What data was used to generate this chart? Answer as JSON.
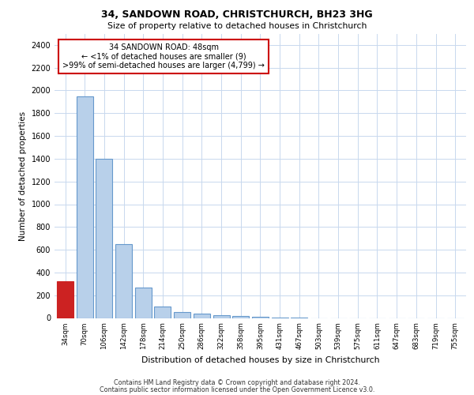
{
  "title1": "34, SANDOWN ROAD, CHRISTCHURCH, BH23 3HG",
  "title2": "Size of property relative to detached houses in Christchurch",
  "xlabel": "Distribution of detached houses by size in Christchurch",
  "ylabel": "Number of detached properties",
  "categories": [
    "34sqm",
    "70sqm",
    "106sqm",
    "142sqm",
    "178sqm",
    "214sqm",
    "250sqm",
    "286sqm",
    "322sqm",
    "358sqm",
    "395sqm",
    "431sqm",
    "467sqm",
    "503sqm",
    "539sqm",
    "575sqm",
    "611sqm",
    "647sqm",
    "683sqm",
    "719sqm",
    "755sqm"
  ],
  "values": [
    320,
    1950,
    1400,
    650,
    265,
    100,
    50,
    40,
    25,
    15,
    8,
    3,
    1,
    0,
    0,
    0,
    0,
    0,
    0,
    0,
    0
  ],
  "highlight_index": 0,
  "bar_color": "#b8d0ea",
  "bar_edge_color": "#6699cc",
  "highlight_bar_color": "#cc2222",
  "highlight_edge_color": "#cc2222",
  "annotation_box_color": "#ffffff",
  "annotation_box_edge": "#cc0000",
  "annotation_text": "34 SANDOWN ROAD: 48sqm\n← <1% of detached houses are smaller (9)\n>99% of semi-detached houses are larger (4,799) →",
  "ylim": [
    0,
    2500
  ],
  "yticks": [
    0,
    200,
    400,
    600,
    800,
    1000,
    1200,
    1400,
    1600,
    1800,
    2000,
    2200,
    2400
  ],
  "footer1": "Contains HM Land Registry data © Crown copyright and database right 2024.",
  "footer2": "Contains public sector information licensed under the Open Government Licence v3.0.",
  "background_color": "#ffffff",
  "grid_color": "#c8d8ee"
}
